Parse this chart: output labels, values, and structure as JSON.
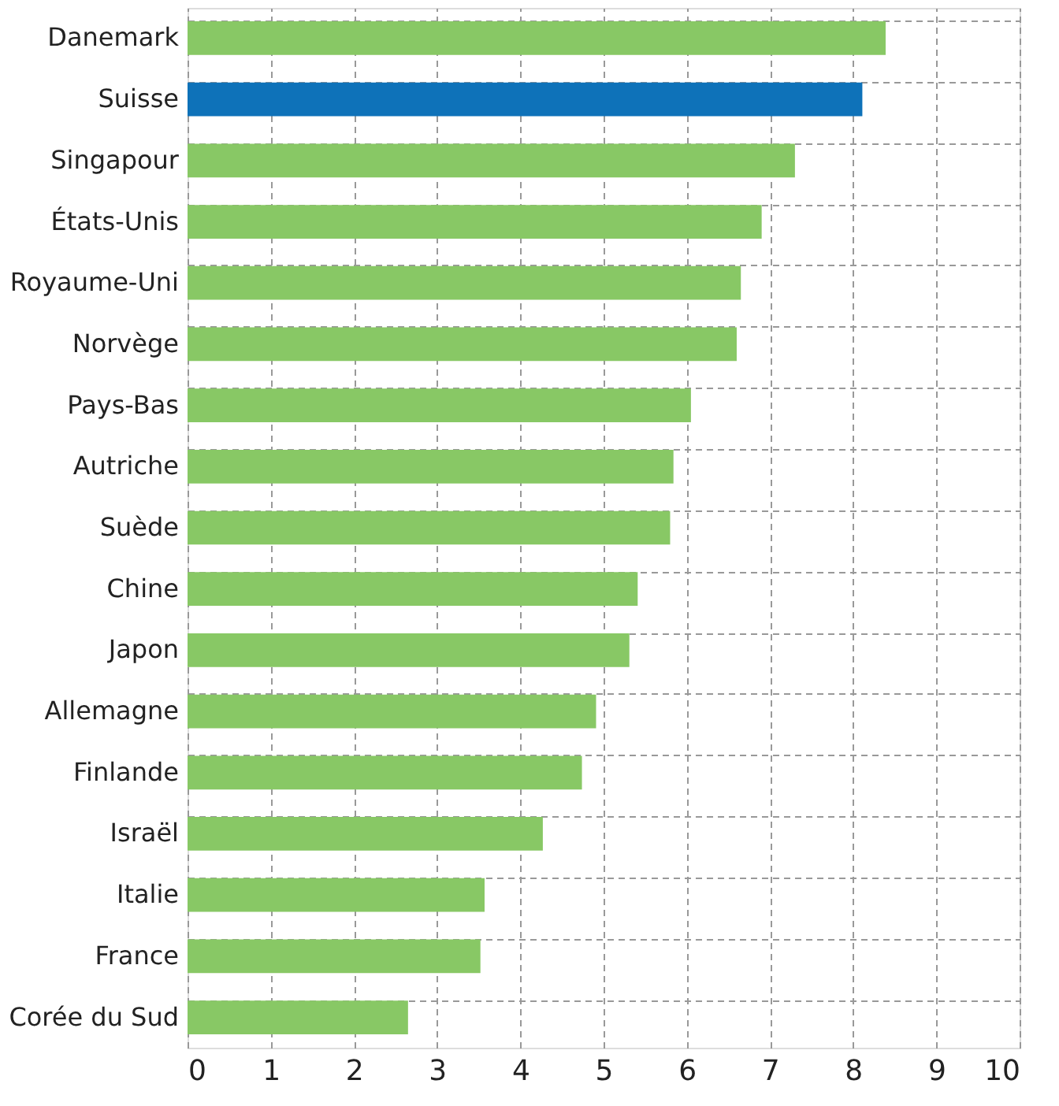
{
  "chart_data": {
    "type": "bar",
    "orientation": "horizontal",
    "categories": [
      "Danemark",
      "Suisse",
      "Singapour",
      "États-Unis",
      "Royaume-Uni",
      "Norvège",
      "Pays-Bas",
      "Autriche",
      "Suède",
      "Chine",
      "Japon",
      "Allemagne",
      "Finlande",
      "Israël",
      "Italie",
      "France",
      "Corée du Sud"
    ],
    "values": [
      8.39,
      8.11,
      7.3,
      6.9,
      6.65,
      6.6,
      6.05,
      5.84,
      5.8,
      5.41,
      5.31,
      4.91,
      4.74,
      4.27,
      3.57,
      3.52,
      2.65
    ],
    "colors": [
      "#88c865",
      "#0e72b9",
      "#88c865",
      "#88c865",
      "#88c865",
      "#88c865",
      "#88c865",
      "#88c865",
      "#88c865",
      "#88c865",
      "#88c865",
      "#88c865",
      "#88c865",
      "#88c865",
      "#88c865",
      "#88c865",
      "#88c865"
    ],
    "xlim": [
      0,
      10
    ],
    "xticks": [
      0,
      1,
      2,
      3,
      4,
      5,
      6,
      7,
      8,
      9,
      10
    ],
    "grid": true
  }
}
